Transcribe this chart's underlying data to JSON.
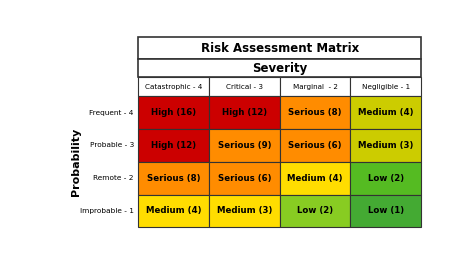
{
  "title": "Risk Assessment Matrix",
  "col_header": "Severity",
  "row_header": "Probability",
  "col_labels": [
    "Catastrophic - 4",
    "Critical - 3",
    "Marginal  - 2",
    "Negligible - 1"
  ],
  "row_labels": [
    "Frequent - 4",
    "Probable - 3",
    "Remote - 2",
    "Improbable - 1"
  ],
  "cell_texts": [
    [
      "High (16)",
      "High (12)",
      "Serious (8)",
      "Medium (4)"
    ],
    [
      "High (12)",
      "Serious (9)",
      "Serious (6)",
      "Medium (3)"
    ],
    [
      "Serious (8)",
      "Serious (6)",
      "Medium (4)",
      "Low (2)"
    ],
    [
      "Medium (4)",
      "Medium (3)",
      "Low (2)",
      "Low (1)"
    ]
  ],
  "cell_colors": [
    [
      "#cc0000",
      "#cc0000",
      "#ff8c00",
      "#cccc00"
    ],
    [
      "#cc0000",
      "#ff8c00",
      "#ff8c00",
      "#cccc00"
    ],
    [
      "#ff8c00",
      "#ff8c00",
      "#ffdd00",
      "#55bb22"
    ],
    [
      "#ffdd00",
      "#ffdd00",
      "#88cc22",
      "#44aa33"
    ]
  ],
  "bg_color": "#ffffff",
  "header_bg": "#ffffff",
  "border_color": "#333333",
  "text_color": "#000000"
}
